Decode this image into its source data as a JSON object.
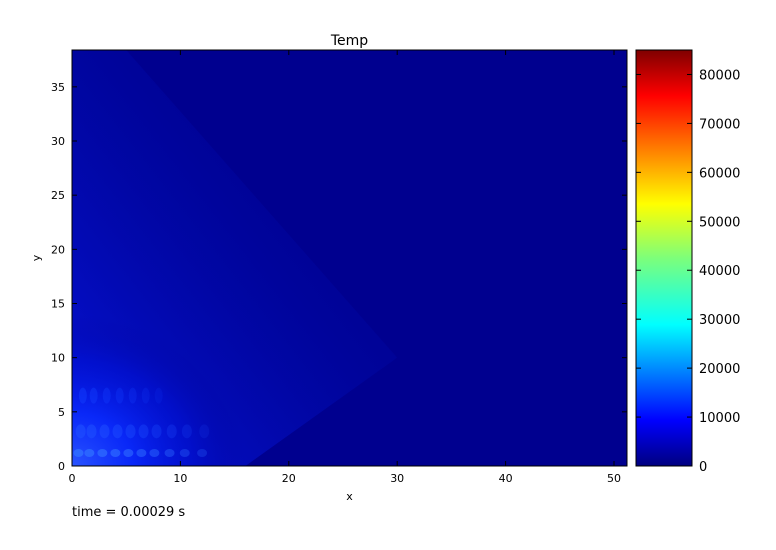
{
  "chart_data": {
    "type": "heatmap",
    "title": "Temp",
    "xlabel": "x",
    "ylabel": "y",
    "xlim": [
      0,
      51.2
    ],
    "ylim": [
      0,
      38.4
    ],
    "xticks": [
      0,
      10,
      20,
      30,
      40,
      50
    ],
    "yticks": [
      0,
      5,
      10,
      15,
      20,
      25,
      30,
      35
    ],
    "colorbar": {
      "min": 0,
      "max": 85000,
      "ticks": [
        0,
        10000,
        20000,
        30000,
        40000,
        50000,
        60000,
        70000,
        80000
      ],
      "colormap": "jet"
    },
    "field_description": [
      {
        "region": "background",
        "value_approx": 0
      },
      {
        "region": "plume near origin, x 0-15, y 0-10",
        "value_approx_max": 22000
      }
    ],
    "grid": false,
    "legend": "none"
  },
  "caption": "time = 0.00029 s",
  "colors": {
    "background_field": "#00008f",
    "plume": "#1a3cff",
    "axis": "#000000"
  }
}
